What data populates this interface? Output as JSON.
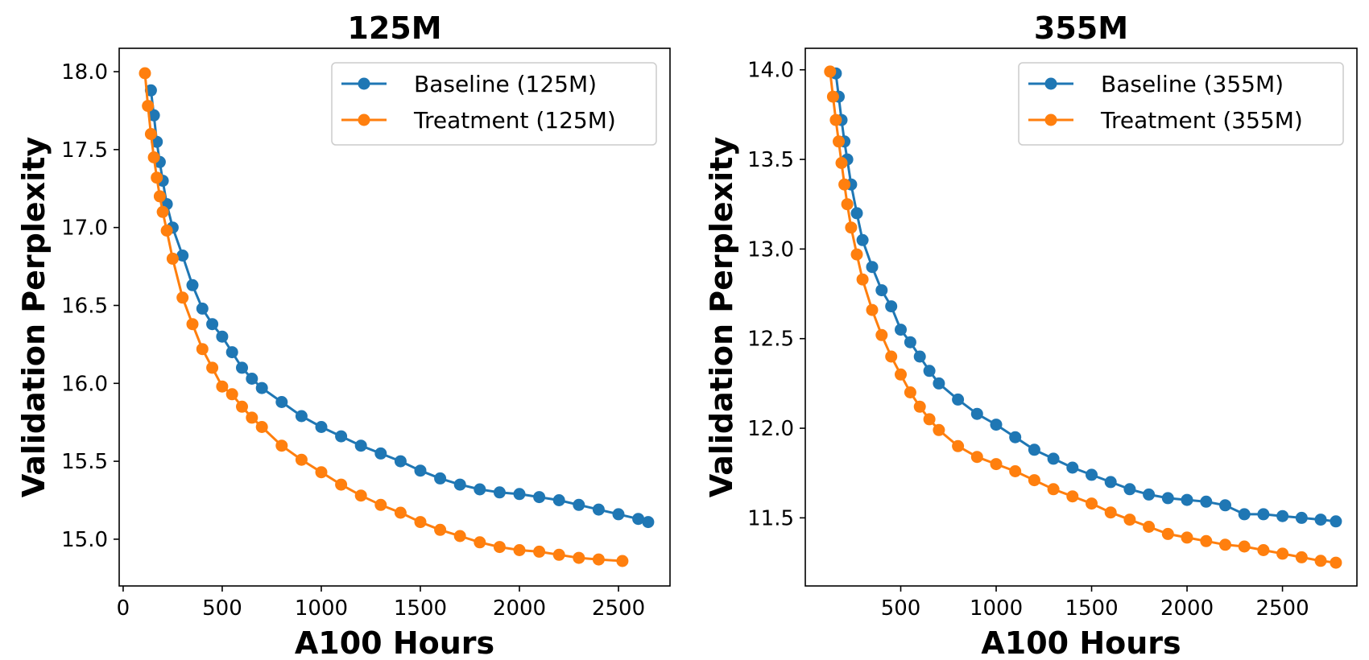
{
  "chart_data": [
    {
      "type": "line",
      "title": "125M",
      "xlabel": "A100 Hours",
      "ylabel": "Validation Perplexity",
      "xlim": [
        -20,
        2760
      ],
      "ylim": [
        14.7,
        18.15
      ],
      "xticks": [
        0,
        500,
        1000,
        1500,
        2000,
        2500
      ],
      "yticks": [
        15.0,
        15.5,
        16.0,
        16.5,
        17.0,
        17.5,
        18.0
      ],
      "xtick_labels": [
        "0",
        "500",
        "1000",
        "1500",
        "2000",
        "2500"
      ],
      "ytick_labels": [
        "15.0",
        "15.5",
        "16.0",
        "16.5",
        "17.0",
        "17.5",
        "18.0"
      ],
      "grid": false,
      "legend_position": "upper-right",
      "series": [
        {
          "name": "Baseline  (125M)",
          "color": "#1f77b4",
          "x": [
            140,
            155,
            170,
            185,
            200,
            220,
            250,
            300,
            350,
            400,
            450,
            500,
            550,
            600,
            650,
            700,
            800,
            900,
            1000,
            1100,
            1200,
            1300,
            1400,
            1500,
            1600,
            1700,
            1800,
            1900,
            2000,
            2100,
            2200,
            2300,
            2400,
            2500,
            2600,
            2650
          ],
          "y": [
            17.88,
            17.72,
            17.55,
            17.42,
            17.3,
            17.15,
            17.0,
            16.82,
            16.63,
            16.48,
            16.38,
            16.3,
            16.2,
            16.1,
            16.03,
            15.97,
            15.88,
            15.79,
            15.72,
            15.66,
            15.6,
            15.55,
            15.5,
            15.44,
            15.39,
            15.35,
            15.32,
            15.3,
            15.29,
            15.27,
            15.25,
            15.22,
            15.19,
            15.16,
            15.13,
            15.11
          ]
        },
        {
          "name": "Treatment (125M)",
          "color": "#ff7f0e",
          "x": [
            110,
            125,
            140,
            155,
            170,
            185,
            200,
            220,
            250,
            300,
            350,
            400,
            450,
            500,
            550,
            600,
            650,
            700,
            800,
            900,
            1000,
            1100,
            1200,
            1300,
            1400,
            1500,
            1600,
            1700,
            1800,
            1900,
            2000,
            2100,
            2200,
            2300,
            2400,
            2520
          ],
          "y": [
            17.99,
            17.78,
            17.6,
            17.45,
            17.32,
            17.2,
            17.1,
            16.98,
            16.8,
            16.55,
            16.38,
            16.22,
            16.1,
            15.98,
            15.93,
            15.85,
            15.78,
            15.72,
            15.6,
            15.51,
            15.43,
            15.35,
            15.28,
            15.22,
            15.17,
            15.11,
            15.06,
            15.02,
            14.98,
            14.95,
            14.93,
            14.92,
            14.9,
            14.88,
            14.87,
            14.86
          ]
        }
      ]
    },
    {
      "type": "line",
      "title": "355M",
      "xlabel": "A100 Hours",
      "ylabel": "Validation Perplexity",
      "xlim": [
        0,
        2890
      ],
      "ylim": [
        11.12,
        14.12
      ],
      "xticks": [
        500,
        1000,
        1500,
        2000,
        2500
      ],
      "yticks": [
        11.5,
        12.0,
        12.5,
        13.0,
        13.5,
        14.0
      ],
      "xtick_labels": [
        "500",
        "1000",
        "1500",
        "2000",
        "2500"
      ],
      "ytick_labels": [
        "11.5",
        "12.0",
        "12.5",
        "13.0",
        "13.5",
        "14.0"
      ],
      "grid": false,
      "legend_position": "upper-right",
      "series": [
        {
          "name": "Baseline  (355M)",
          "color": "#1f77b4",
          "x": [
            160,
            175,
            190,
            205,
            220,
            240,
            270,
            300,
            350,
            400,
            450,
            500,
            550,
            600,
            650,
            700,
            800,
            900,
            1000,
            1100,
            1200,
            1300,
            1400,
            1500,
            1600,
            1700,
            1800,
            1900,
            2000,
            2100,
            2200,
            2300,
            2400,
            2500,
            2600,
            2700,
            2780
          ],
          "y": [
            13.98,
            13.85,
            13.72,
            13.6,
            13.5,
            13.36,
            13.2,
            13.05,
            12.9,
            12.77,
            12.68,
            12.55,
            12.48,
            12.4,
            12.32,
            12.25,
            12.16,
            12.08,
            12.02,
            11.95,
            11.88,
            11.83,
            11.78,
            11.74,
            11.7,
            11.66,
            11.63,
            11.61,
            11.6,
            11.59,
            11.57,
            11.52,
            11.52,
            11.51,
            11.5,
            11.49,
            11.48
          ]
        },
        {
          "name": "Treatment (355M)",
          "color": "#ff7f0e",
          "x": [
            130,
            145,
            160,
            175,
            190,
            205,
            220,
            240,
            270,
            300,
            350,
            400,
            450,
            500,
            550,
            600,
            650,
            700,
            800,
            900,
            1000,
            1100,
            1200,
            1300,
            1400,
            1500,
            1600,
            1700,
            1800,
            1900,
            2000,
            2100,
            2200,
            2300,
            2400,
            2500,
            2600,
            2700,
            2780
          ],
          "y": [
            13.99,
            13.85,
            13.72,
            13.6,
            13.48,
            13.36,
            13.25,
            13.12,
            12.97,
            12.83,
            12.66,
            12.52,
            12.4,
            12.3,
            12.2,
            12.12,
            12.05,
            11.99,
            11.9,
            11.84,
            11.8,
            11.76,
            11.71,
            11.66,
            11.62,
            11.58,
            11.53,
            11.49,
            11.45,
            11.41,
            11.39,
            11.37,
            11.35,
            11.34,
            11.32,
            11.3,
            11.28,
            11.26,
            11.25
          ]
        }
      ]
    }
  ]
}
